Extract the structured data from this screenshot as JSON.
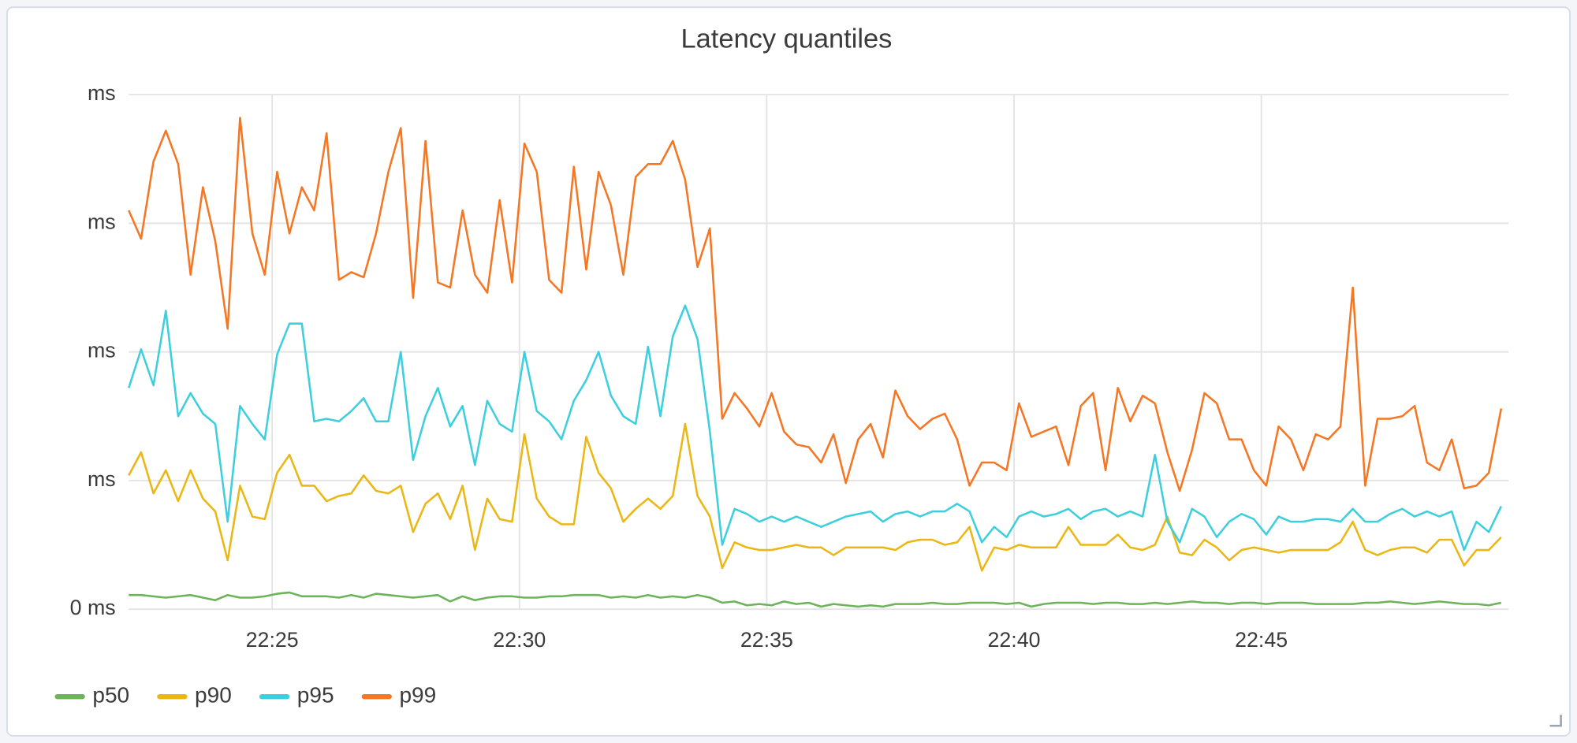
{
  "chart_data": {
    "type": "line",
    "title": "Latency quantiles",
    "x": [
      1342.1,
      1342.35,
      1342.6,
      1342.85,
      1343.1,
      1343.35,
      1343.6,
      1343.85,
      1344.1,
      1344.35,
      1344.6,
      1344.85,
      1345.1,
      1345.35,
      1345.6,
      1345.85,
      1346.1,
      1346.35,
      1346.6,
      1346.85,
      1347.1,
      1347.35,
      1347.6,
      1347.85,
      1348.1,
      1348.35,
      1348.6,
      1348.85,
      1349.1,
      1349.35,
      1349.6,
      1349.85,
      1350.1,
      1350.35,
      1350.6,
      1350.85,
      1351.1,
      1351.35,
      1351.6,
      1351.85,
      1352.1,
      1352.35,
      1352.6,
      1352.85,
      1353.1,
      1353.35,
      1353.6,
      1353.85,
      1354.1,
      1354.35,
      1354.6,
      1354.85,
      1355.1,
      1355.35,
      1355.6,
      1355.85,
      1356.1,
      1356.35,
      1356.6,
      1356.85,
      1357.1,
      1357.35,
      1357.6,
      1357.85,
      1358.1,
      1358.35,
      1358.6,
      1358.85,
      1359.1,
      1359.35,
      1359.6,
      1359.85,
      1360.1,
      1360.35,
      1360.6,
      1360.85,
      1361.1,
      1361.35,
      1361.6,
      1361.85,
      1362.1,
      1362.35,
      1362.6,
      1362.85,
      1363.1,
      1363.35,
      1363.6,
      1363.85,
      1364.1,
      1364.35,
      1364.6,
      1364.85,
      1365.1,
      1365.35,
      1365.6,
      1365.85,
      1366.1,
      1366.35,
      1366.6,
      1366.85,
      1367.1,
      1367.35,
      1367.6,
      1367.85,
      1368.1,
      1368.35,
      1368.6,
      1368.85,
      1369.1,
      1369.35,
      1369.6,
      1369.85
    ],
    "series": [
      {
        "name": "p50",
        "color": "#6db35a",
        "values": [
          0.55,
          0.55,
          0.5,
          0.45,
          0.5,
          0.55,
          0.45,
          0.35,
          0.55,
          0.45,
          0.45,
          0.5,
          0.6,
          0.65,
          0.5,
          0.5,
          0.5,
          0.45,
          0.55,
          0.45,
          0.6,
          0.55,
          0.5,
          0.45,
          0.5,
          0.55,
          0.3,
          0.5,
          0.35,
          0.45,
          0.5,
          0.5,
          0.45,
          0.45,
          0.5,
          0.5,
          0.55,
          0.55,
          0.55,
          0.45,
          0.5,
          0.45,
          0.55,
          0.45,
          0.5,
          0.45,
          0.55,
          0.45,
          0.25,
          0.3,
          0.15,
          0.2,
          0.15,
          0.3,
          0.2,
          0.25,
          0.1,
          0.2,
          0.15,
          0.1,
          0.15,
          0.1,
          0.2,
          0.2,
          0.2,
          0.25,
          0.2,
          0.2,
          0.25,
          0.25,
          0.25,
          0.2,
          0.25,
          0.1,
          0.2,
          0.25,
          0.25,
          0.25,
          0.2,
          0.25,
          0.25,
          0.2,
          0.2,
          0.25,
          0.2,
          0.25,
          0.3,
          0.25,
          0.25,
          0.2,
          0.25,
          0.25,
          0.2,
          0.25,
          0.25,
          0.25,
          0.2,
          0.2,
          0.2,
          0.2,
          0.25,
          0.25,
          0.3,
          0.25,
          0.2,
          0.25,
          0.3,
          0.25,
          0.2,
          0.2,
          0.15,
          0.25
        ]
      },
      {
        "name": "p90",
        "color": "#ebb714",
        "values": [
          5.2,
          6.1,
          4.5,
          5.4,
          4.2,
          5.4,
          4.3,
          3.8,
          1.9,
          4.8,
          3.6,
          3.5,
          5.3,
          6.0,
          4.8,
          4.8,
          4.2,
          4.4,
          4.5,
          5.2,
          4.6,
          4.5,
          4.8,
          3.0,
          4.1,
          4.5,
          3.5,
          4.8,
          2.3,
          4.3,
          3.5,
          3.4,
          6.8,
          4.3,
          3.6,
          3.3,
          3.3,
          6.7,
          5.3,
          4.7,
          3.4,
          3.9,
          4.3,
          3.9,
          4.4,
          7.2,
          4.4,
          3.6,
          1.6,
          2.6,
          2.4,
          2.3,
          2.3,
          2.4,
          2.5,
          2.4,
          2.4,
          2.1,
          2.4,
          2.4,
          2.4,
          2.4,
          2.3,
          2.6,
          2.7,
          2.7,
          2.5,
          2.6,
          3.2,
          1.5,
          2.4,
          2.3,
          2.5,
          2.4,
          2.4,
          2.4,
          3.2,
          2.5,
          2.5,
          2.5,
          2.9,
          2.4,
          2.3,
          2.5,
          3.6,
          2.2,
          2.1,
          2.7,
          2.4,
          1.9,
          2.3,
          2.4,
          2.3,
          2.2,
          2.3,
          2.3,
          2.3,
          2.3,
          2.6,
          3.4,
          2.3,
          2.1,
          2.3,
          2.4,
          2.4,
          2.2,
          2.7,
          2.7,
          1.7,
          2.3,
          2.3,
          2.8
        ]
      },
      {
        "name": "p95",
        "color": "#3ecfdf",
        "values": [
          8.6,
          10.1,
          8.7,
          11.6,
          7.5,
          8.4,
          7.6,
          7.2,
          3.4,
          7.9,
          7.2,
          6.6,
          9.9,
          11.1,
          11.1,
          7.3,
          7.4,
          7.3,
          7.7,
          8.2,
          7.3,
          7.3,
          10.0,
          5.8,
          7.5,
          8.6,
          7.1,
          7.9,
          5.6,
          8.1,
          7.2,
          6.9,
          10.0,
          7.7,
          7.3,
          6.6,
          8.1,
          8.9,
          10.0,
          8.3,
          7.5,
          7.2,
          10.2,
          7.5,
          10.6,
          11.8,
          10.5,
          6.9,
          2.5,
          3.9,
          3.7,
          3.4,
          3.6,
          3.4,
          3.6,
          3.4,
          3.2,
          3.4,
          3.6,
          3.7,
          3.8,
          3.4,
          3.7,
          3.8,
          3.6,
          3.8,
          3.8,
          4.1,
          3.8,
          2.6,
          3.2,
          2.8,
          3.6,
          3.8,
          3.6,
          3.7,
          3.9,
          3.5,
          3.8,
          3.9,
          3.6,
          3.8,
          3.6,
          6.0,
          3.4,
          2.6,
          3.9,
          3.6,
          2.8,
          3.4,
          3.7,
          3.5,
          2.9,
          3.6,
          3.4,
          3.4,
          3.5,
          3.5,
          3.4,
          3.9,
          3.4,
          3.4,
          3.7,
          3.9,
          3.6,
          3.8,
          3.6,
          3.8,
          2.3,
          3.4,
          3.0,
          4.0
        ]
      },
      {
        "name": "p99",
        "color": "#f57623",
        "values": [
          15.5,
          14.4,
          17.4,
          18.6,
          17.3,
          13.0,
          16.4,
          14.3,
          10.9,
          19.1,
          14.6,
          13.0,
          17.0,
          14.6,
          16.4,
          15.5,
          18.5,
          12.8,
          13.1,
          12.9,
          14.6,
          17.0,
          18.7,
          12.1,
          18.2,
          12.7,
          12.5,
          15.5,
          13.0,
          12.3,
          15.9,
          12.7,
          18.1,
          17.0,
          12.8,
          12.3,
          17.2,
          13.2,
          17.0,
          15.7,
          13.0,
          16.8,
          17.3,
          17.3,
          18.2,
          16.7,
          13.3,
          14.8,
          7.4,
          8.4,
          7.8,
          7.1,
          8.4,
          6.9,
          6.4,
          6.3,
          5.7,
          6.8,
          4.9,
          6.6,
          7.2,
          5.9,
          8.5,
          7.5,
          7.0,
          7.4,
          7.6,
          6.6,
          4.8,
          5.7,
          5.7,
          5.4,
          8.0,
          6.7,
          6.9,
          7.1,
          5.6,
          7.9,
          8.4,
          5.4,
          8.6,
          7.3,
          8.3,
          8.0,
          6.1,
          4.6,
          6.2,
          8.4,
          8.0,
          6.6,
          6.6,
          5.4,
          4.8,
          7.1,
          6.6,
          5.4,
          6.8,
          6.6,
          7.1,
          12.5,
          4.8,
          7.4,
          7.4,
          7.5,
          7.9,
          5.7,
          5.4,
          6.6,
          4.7,
          4.8,
          5.3,
          7.8
        ]
      }
    ],
    "xlim": [
      1342.1,
      1370
    ],
    "xticks": [
      {
        "value": 1345,
        "label": "22:25"
      },
      {
        "value": 1350,
        "label": "22:30"
      },
      {
        "value": 1355,
        "label": "22:35"
      },
      {
        "value": 1360,
        "label": "22:40"
      },
      {
        "value": 1365,
        "label": "22:45"
      }
    ],
    "ylim": [
      0,
      20
    ],
    "yticks": [
      {
        "value": 0,
        "label": "0 ms"
      },
      {
        "value": 5,
        "label": "ms"
      },
      {
        "value": 10,
        "label": "ms"
      },
      {
        "value": 15,
        "label": "ms"
      },
      {
        "value": 20,
        "label": "ms"
      }
    ],
    "grid": true,
    "legend": "bottom"
  }
}
